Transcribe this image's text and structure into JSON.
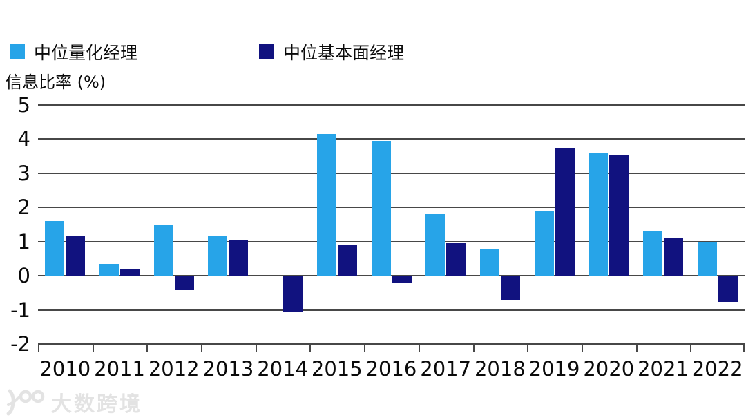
{
  "legend": {
    "items": [
      {
        "id": "quant",
        "label": "中位量化经理",
        "color": "#27A4E8"
      },
      {
        "id": "fundamental",
        "label": "中位基本面经理",
        "color": "#11127F"
      }
    ]
  },
  "watermark": {
    "text": "大数跨境"
  },
  "chart_data": {
    "type": "bar",
    "title": "",
    "ylabel": "信息比率 (%)",
    "xlabel": "",
    "categories": [
      "2010",
      "2011",
      "2012",
      "2013",
      "2014",
      "2015",
      "2016",
      "2017",
      "2018",
      "2019",
      "2020",
      "2021",
      "2022"
    ],
    "series": [
      {
        "name": "中位量化经理",
        "color": "#27A4E8",
        "values": [
          1.6,
          0.35,
          1.5,
          1.15,
          null,
          4.15,
          3.95,
          1.8,
          0.8,
          1.9,
          3.6,
          1.3,
          1.0
        ]
      },
      {
        "name": "中位基本面经理",
        "color": "#11127F",
        "values": [
          1.15,
          0.2,
          -0.4,
          1.05,
          -1.05,
          0.9,
          -0.2,
          0.95,
          -0.7,
          3.75,
          3.55,
          1.1,
          -0.75
        ]
      }
    ],
    "ylim": [
      -2,
      5
    ],
    "yticks": [
      5,
      4,
      3,
      2,
      1,
      0,
      -1,
      -2
    ],
    "grid": "horizontal",
    "gridline_color": "#474747",
    "legend_position": "top-left"
  }
}
